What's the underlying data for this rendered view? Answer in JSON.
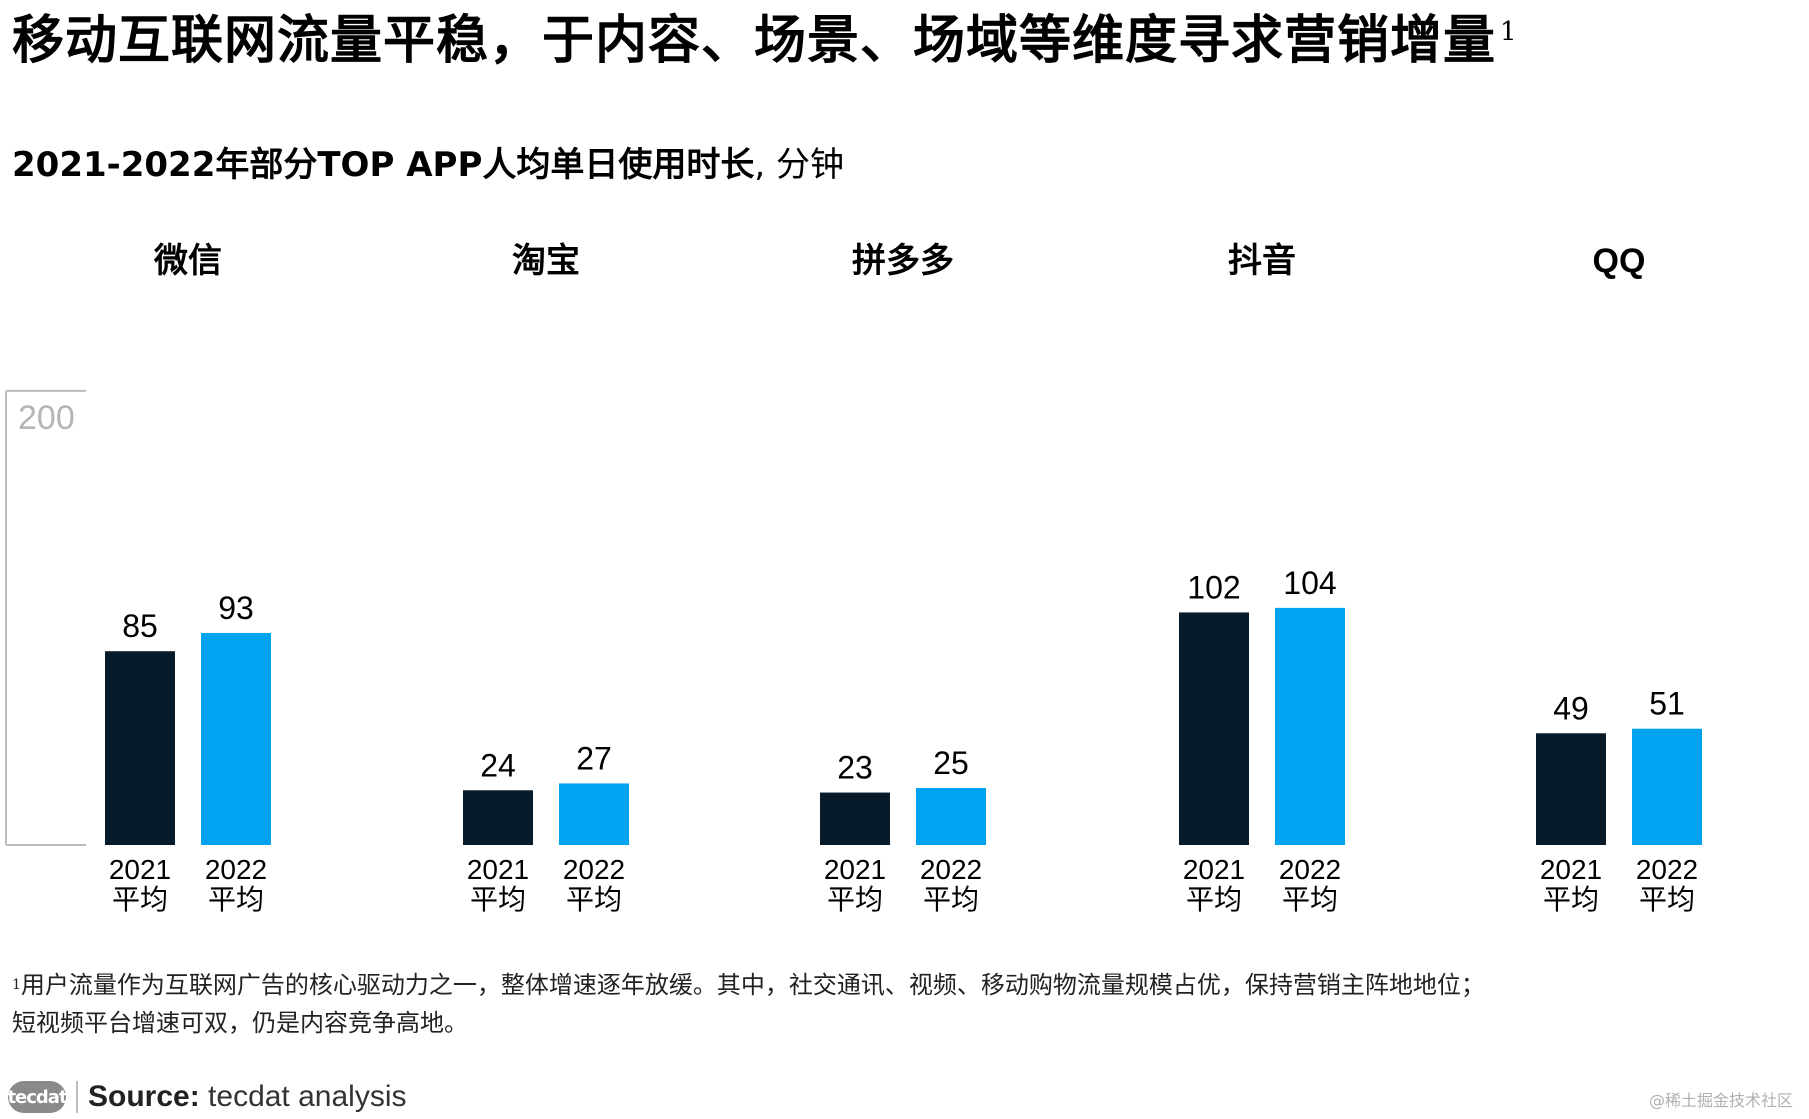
{
  "title": "移动互联网流量平稳，于内容、场景、场域等维度寻求营销增量",
  "title_sup": "1",
  "subtitle_bold": "2021-2022年部分TOP APP人均单日使用时长",
  "subtitle_rest": ", 分钟",
  "chart_data": {
    "type": "bar",
    "categories": [
      "微信",
      "淘宝",
      "拼多多",
      "抖音",
      "QQ"
    ],
    "series": [
      {
        "name": "2021\n平均",
        "values": [
          85,
          24,
          23,
          102,
          49
        ],
        "color": "#071b2b"
      },
      {
        "name": "2022\n平均",
        "values": [
          93,
          27,
          25,
          104,
          51
        ],
        "color": "#00a3ef"
      }
    ],
    "bar_labels": [
      "2021",
      "2022"
    ],
    "bar_sublabel": "平均",
    "ylim": [
      0,
      200
    ],
    "y_axis_label": "200"
  },
  "footnote": {
    "sup": "1",
    "line1": "用户流量作为互联网广告的核心驱动力之一，整体增速逐年放缓。其中，社交通讯、视频、移动购物流量规模占优，保持营销主阵地地位；",
    "line2": "短视频平台增速可双，仍是内容竞争高地。"
  },
  "source": {
    "label": "Source:",
    "text": "tecdat analysis",
    "logo": "tecdat"
  },
  "watermark": "@稀土掘金技术社区"
}
